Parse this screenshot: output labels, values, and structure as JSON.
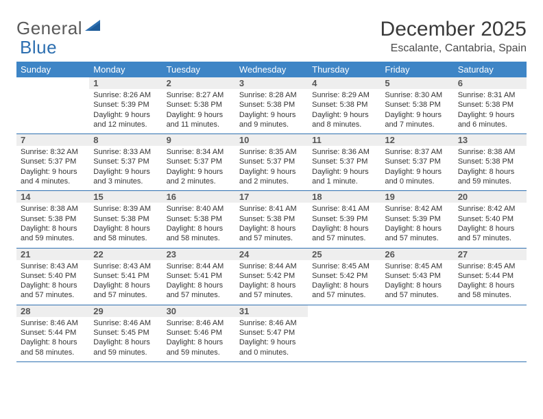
{
  "brand": {
    "name1": "General",
    "name2": "Blue"
  },
  "title": "December 2025",
  "location": "Escalante, Cantabria, Spain",
  "colors": {
    "header_bg": "#3e85c6",
    "header_text": "#ffffff",
    "row_border": "#2d6fb0",
    "daynum_bg": "#eeeeee",
    "logo_gray": "#5a5a5a",
    "logo_blue": "#2d6fb0"
  },
  "day_names": [
    "Sunday",
    "Monday",
    "Tuesday",
    "Wednesday",
    "Thursday",
    "Friday",
    "Saturday"
  ],
  "weeks": [
    [
      {
        "n": "",
        "sunrise": "",
        "sunset": "",
        "daylight": ""
      },
      {
        "n": "1",
        "sunrise": "8:26 AM",
        "sunset": "5:39 PM",
        "daylight": "9 hours and 12 minutes."
      },
      {
        "n": "2",
        "sunrise": "8:27 AM",
        "sunset": "5:38 PM",
        "daylight": "9 hours and 11 minutes."
      },
      {
        "n": "3",
        "sunrise": "8:28 AM",
        "sunset": "5:38 PM",
        "daylight": "9 hours and 9 minutes."
      },
      {
        "n": "4",
        "sunrise": "8:29 AM",
        "sunset": "5:38 PM",
        "daylight": "9 hours and 8 minutes."
      },
      {
        "n": "5",
        "sunrise": "8:30 AM",
        "sunset": "5:38 PM",
        "daylight": "9 hours and 7 minutes."
      },
      {
        "n": "6",
        "sunrise": "8:31 AM",
        "sunset": "5:38 PM",
        "daylight": "9 hours and 6 minutes."
      }
    ],
    [
      {
        "n": "7",
        "sunrise": "8:32 AM",
        "sunset": "5:37 PM",
        "daylight": "9 hours and 4 minutes."
      },
      {
        "n": "8",
        "sunrise": "8:33 AM",
        "sunset": "5:37 PM",
        "daylight": "9 hours and 3 minutes."
      },
      {
        "n": "9",
        "sunrise": "8:34 AM",
        "sunset": "5:37 PM",
        "daylight": "9 hours and 2 minutes."
      },
      {
        "n": "10",
        "sunrise": "8:35 AM",
        "sunset": "5:37 PM",
        "daylight": "9 hours and 2 minutes."
      },
      {
        "n": "11",
        "sunrise": "8:36 AM",
        "sunset": "5:37 PM",
        "daylight": "9 hours and 1 minute."
      },
      {
        "n": "12",
        "sunrise": "8:37 AM",
        "sunset": "5:37 PM",
        "daylight": "9 hours and 0 minutes."
      },
      {
        "n": "13",
        "sunrise": "8:38 AM",
        "sunset": "5:38 PM",
        "daylight": "8 hours and 59 minutes."
      }
    ],
    [
      {
        "n": "14",
        "sunrise": "8:38 AM",
        "sunset": "5:38 PM",
        "daylight": "8 hours and 59 minutes."
      },
      {
        "n": "15",
        "sunrise": "8:39 AM",
        "sunset": "5:38 PM",
        "daylight": "8 hours and 58 minutes."
      },
      {
        "n": "16",
        "sunrise": "8:40 AM",
        "sunset": "5:38 PM",
        "daylight": "8 hours and 58 minutes."
      },
      {
        "n": "17",
        "sunrise": "8:41 AM",
        "sunset": "5:38 PM",
        "daylight": "8 hours and 57 minutes."
      },
      {
        "n": "18",
        "sunrise": "8:41 AM",
        "sunset": "5:39 PM",
        "daylight": "8 hours and 57 minutes."
      },
      {
        "n": "19",
        "sunrise": "8:42 AM",
        "sunset": "5:39 PM",
        "daylight": "8 hours and 57 minutes."
      },
      {
        "n": "20",
        "sunrise": "8:42 AM",
        "sunset": "5:40 PM",
        "daylight": "8 hours and 57 minutes."
      }
    ],
    [
      {
        "n": "21",
        "sunrise": "8:43 AM",
        "sunset": "5:40 PM",
        "daylight": "8 hours and 57 minutes."
      },
      {
        "n": "22",
        "sunrise": "8:43 AM",
        "sunset": "5:41 PM",
        "daylight": "8 hours and 57 minutes."
      },
      {
        "n": "23",
        "sunrise": "8:44 AM",
        "sunset": "5:41 PM",
        "daylight": "8 hours and 57 minutes."
      },
      {
        "n": "24",
        "sunrise": "8:44 AM",
        "sunset": "5:42 PM",
        "daylight": "8 hours and 57 minutes."
      },
      {
        "n": "25",
        "sunrise": "8:45 AM",
        "sunset": "5:42 PM",
        "daylight": "8 hours and 57 minutes."
      },
      {
        "n": "26",
        "sunrise": "8:45 AM",
        "sunset": "5:43 PM",
        "daylight": "8 hours and 57 minutes."
      },
      {
        "n": "27",
        "sunrise": "8:45 AM",
        "sunset": "5:44 PM",
        "daylight": "8 hours and 58 minutes."
      }
    ],
    [
      {
        "n": "28",
        "sunrise": "8:46 AM",
        "sunset": "5:44 PM",
        "daylight": "8 hours and 58 minutes."
      },
      {
        "n": "29",
        "sunrise": "8:46 AM",
        "sunset": "5:45 PM",
        "daylight": "8 hours and 59 minutes."
      },
      {
        "n": "30",
        "sunrise": "8:46 AM",
        "sunset": "5:46 PM",
        "daylight": "8 hours and 59 minutes."
      },
      {
        "n": "31",
        "sunrise": "8:46 AM",
        "sunset": "5:47 PM",
        "daylight": "9 hours and 0 minutes."
      },
      {
        "n": "",
        "sunrise": "",
        "sunset": "",
        "daylight": ""
      },
      {
        "n": "",
        "sunrise": "",
        "sunset": "",
        "daylight": ""
      },
      {
        "n": "",
        "sunrise": "",
        "sunset": "",
        "daylight": ""
      }
    ]
  ],
  "labels": {
    "sunrise": "Sunrise:",
    "sunset": "Sunset:",
    "daylight": "Daylight:"
  }
}
